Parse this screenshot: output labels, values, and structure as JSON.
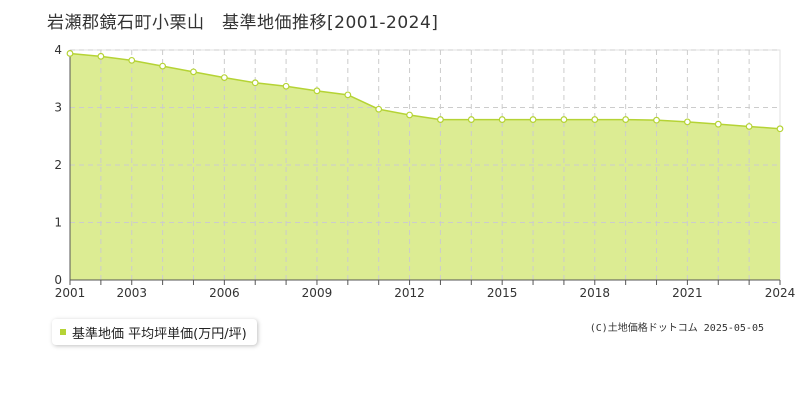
{
  "title": "岩瀬郡鏡石町小栗山　基準地価推移[2001-2024]",
  "legend_label": "基準地価 平均坪単価(万円/坪)",
  "credit": "(C)土地価格ドットコム 2025-05-05",
  "colors": {
    "area_fill": "#dcec93",
    "line": "#b5d335",
    "marker_fill": "#ffffff",
    "grid": "#cccccc",
    "axis": "#555555"
  },
  "chart_data": {
    "type": "area",
    "x": [
      2001,
      2002,
      2003,
      2004,
      2005,
      2006,
      2007,
      2008,
      2009,
      2010,
      2011,
      2012,
      2013,
      2014,
      2015,
      2016,
      2017,
      2018,
      2019,
      2020,
      2021,
      2022,
      2023,
      2024
    ],
    "series": [
      {
        "name": "基準地価 平均坪単価(万円/坪)",
        "values": [
          3.94,
          3.89,
          3.82,
          3.72,
          3.62,
          3.52,
          3.43,
          3.37,
          3.29,
          3.22,
          2.97,
          2.87,
          2.79,
          2.79,
          2.79,
          2.79,
          2.79,
          2.79,
          2.79,
          2.78,
          2.75,
          2.71,
          2.67,
          2.63
        ]
      }
    ],
    "x_tick_labels": [
      "2001",
      "2003",
      "2006",
      "2009",
      "2012",
      "2015",
      "2018",
      "2021",
      "2024"
    ],
    "y_tick_labels": [
      "0",
      "1",
      "2",
      "3",
      "4"
    ],
    "ylim": [
      0,
      4
    ],
    "xlim": [
      2001,
      2024
    ],
    "xlabel": "",
    "ylabel": "",
    "grid": true,
    "legend_position": "bottom-left"
  }
}
